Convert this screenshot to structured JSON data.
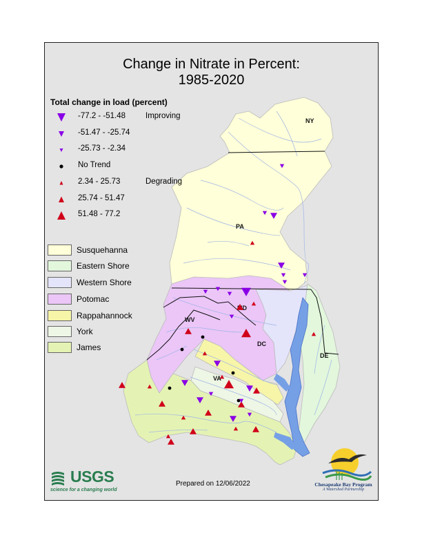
{
  "title": {
    "line1": "Change in Nitrate in Percent:",
    "line2": "1985-2020"
  },
  "legend": {
    "heading": "Total change in load (percent)",
    "classes": [
      {
        "label": "-77.2 - -51.48",
        "note": "Improving",
        "symbol": "triangle-down-large",
        "color": "#8a00e6"
      },
      {
        "label": "-51.47 - -25.74",
        "note": "",
        "symbol": "triangle-down-medium",
        "color": "#8a00e6"
      },
      {
        "label": "-25.73 - -2.34",
        "note": "",
        "symbol": "triangle-down-small",
        "color": "#8a00e6"
      },
      {
        "label": "No Trend",
        "note": "",
        "symbol": "circle",
        "color": "#000000"
      },
      {
        "label": "2.34 - 25.73",
        "note": "Degrading",
        "symbol": "triangle-up-small",
        "color": "#d0001a"
      },
      {
        "label": "25.74 - 51.47",
        "note": "",
        "symbol": "triangle-up-medium",
        "color": "#d0001a"
      },
      {
        "label": "51.48 - 77.2",
        "note": "",
        "symbol": "triangle-up-large",
        "color": "#d0001a"
      }
    ],
    "basins": [
      {
        "label": "Susquehanna",
        "color": "#ffffd9"
      },
      {
        "label": "Eastern Shore",
        "color": "#e2f7dc"
      },
      {
        "label": "Western Shore",
        "color": "#e4e4fb"
      },
      {
        "label": "Potomac",
        "color": "#ebc6f7"
      },
      {
        "label": "Rappahannock",
        "color": "#f7f5a8"
      },
      {
        "label": "York",
        "color": "#eef6e6"
      },
      {
        "label": "James",
        "color": "#e4f3b3"
      }
    ]
  },
  "state_labels": {
    "ny": "NY",
    "pa": "PA",
    "md": "MD",
    "wv": "WV",
    "dc": "DC",
    "de": "DE",
    "va": "VA"
  },
  "footer": {
    "prepared": "Prepared on 12/06/2022",
    "usgs": "USGS",
    "usgs_tagline": "science for a changing world",
    "cbp_name": "Chesapeake Bay Program",
    "cbp_tagline": "A Watershed Partnership"
  },
  "sites": [
    {
      "trend": "triangle-down-small"
    },
    {
      "trend": "triangle-down-medium"
    },
    {
      "trend": "triangle-down-small"
    },
    {
      "trend": "triangle-down-medium"
    },
    {
      "trend": "triangle-up-small"
    },
    {
      "trend": "triangle-down-small"
    },
    {
      "trend": "triangle-down-small"
    },
    {
      "trend": "triangle-down-large"
    },
    {
      "trend": "triangle-down-small"
    },
    {
      "trend": "triangle-down-small"
    },
    {
      "trend": "triangle-down-small"
    },
    {
      "trend": "triangle-up-medium"
    },
    {
      "trend": "triangle-up-large"
    },
    {
      "trend": "triangle-up-small"
    },
    {
      "trend": "triangle-down-small"
    },
    {
      "trend": "circle"
    },
    {
      "trend": "circle"
    },
    {
      "trend": "triangle-up-medium"
    },
    {
      "trend": "circle"
    },
    {
      "trend": "triangle-down-medium"
    },
    {
      "trend": "triangle-down-medium"
    },
    {
      "trend": "triangle-up-small"
    },
    {
      "trend": "triangle-up-large"
    },
    {
      "trend": "circle"
    },
    {
      "trend": "triangle-down-medium"
    },
    {
      "trend": "circle"
    },
    {
      "trend": "triangle-up-medium"
    },
    {
      "trend": "triangle-up-medium"
    },
    {
      "trend": "triangle-down-medium"
    },
    {
      "trend": "triangle-up-medium"
    },
    {
      "trend": "triangle-up-medium"
    },
    {
      "trend": "triangle-up-small"
    },
    {
      "trend": "triangle-up-small"
    },
    {
      "trend": "triangle-up-medium"
    },
    {
      "trend": "triangle-up-small"
    },
    {
      "trend": "triangle-up-medium"
    },
    {
      "trend": "triangle-up-medium"
    },
    {
      "trend": "triangle-up-small"
    },
    {
      "trend": "triangle-up-medium"
    },
    {
      "trend": "triangle-down-small"
    },
    {
      "trend": "triangle-down-small"
    },
    {
      "trend": "triangle-down-small"
    },
    {
      "trend": "triangle-up-small"
    },
    {
      "trend": "triangle-down-medium"
    },
    {
      "trend": "triangle-up-small"
    },
    {
      "trend": "triangle-down-small"
    }
  ]
}
